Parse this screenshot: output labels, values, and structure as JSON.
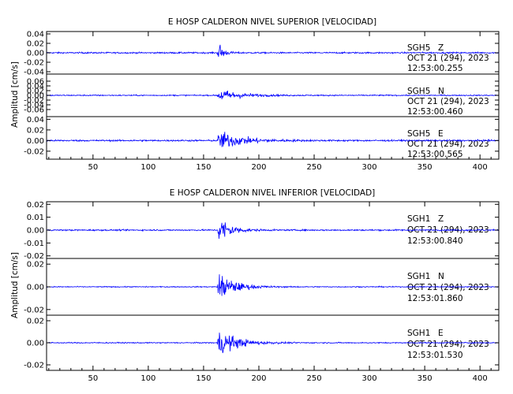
{
  "colors": {
    "trace": "#0000ff",
    "axes": "#000000",
    "background": "#ffffff"
  },
  "chart_data": [
    {
      "type": "line",
      "title": "E HOSP CALDERON NIVEL SUPERIOR [VELOCIDAD]",
      "ylabel": "Amplitud [cm/s]",
      "xlim": [
        8,
        417
      ],
      "x_ticks": [
        50,
        100,
        150,
        200,
        250,
        300,
        350,
        400
      ],
      "grid": false,
      "panels": [
        {
          "station": "SGH5",
          "component": "Z",
          "date": "OCT 21 (294), 2023",
          "time": "12:53:00.255",
          "ylim": [
            -0.045,
            0.045
          ],
          "y_ticks": [
            0.04,
            0.02,
            0.0,
            -0.02,
            -0.04
          ],
          "y_tick_labels": [
            "0.04",
            "0.02",
            "0.00",
            "-0.02",
            "-0.04"
          ],
          "noise_amplitude": 0.0025,
          "event_onset": 162,
          "event_peak": 0.035,
          "decay_s": 4
        },
        {
          "station": "SGH5",
          "component": "N",
          "date": "OCT 21 (294), 2023",
          "time": "12:53:00.460",
          "ylim": [
            -0.09,
            0.09
          ],
          "y_ticks": [
            0.06,
            0.04,
            0.02,
            0.0,
            -0.02,
            -0.04,
            -0.06
          ],
          "y_tick_labels": [
            "0.06",
            "0.04",
            "0.02",
            "0.00",
            "-0.02",
            "-0.04",
            "-0.06"
          ],
          "noise_amplitude": 0.004,
          "event_onset": 162,
          "event_peak": 0.045,
          "decay_s": 18
        },
        {
          "station": "SGH5",
          "component": "E",
          "date": "OCT 21 (294), 2023",
          "time": "12:53:00.565",
          "ylim": [
            -0.035,
            0.045
          ],
          "y_ticks": [
            0.04,
            0.02,
            0.0,
            -0.02
          ],
          "y_tick_labels": [
            "0.04",
            "0.02",
            "0.00",
            "-0.02"
          ],
          "noise_amplitude": 0.0025,
          "event_onset": 162,
          "event_peak": 0.03,
          "decay_s": 20
        }
      ]
    },
    {
      "type": "line",
      "title": "E HOSP CALDERON NIVEL INFERIOR [VELOCIDAD]",
      "ylabel": "Amplitud [cm/s]",
      "xlim": [
        8,
        417
      ],
      "x_ticks": [
        50,
        100,
        150,
        200,
        250,
        300,
        350,
        400
      ],
      "grid": false,
      "panels": [
        {
          "station": "SGH1",
          "component": "Z",
          "date": "OCT 21 (294), 2023",
          "time": "12:53:00.840",
          "ylim": [
            -0.022,
            0.022
          ],
          "y_ticks": [
            0.02,
            0.01,
            0.0,
            -0.01,
            -0.02
          ],
          "y_tick_labels": [
            "0.02",
            "0.01",
            "0.00",
            "-0.01",
            "-0.02"
          ],
          "noise_amplitude": 0.0009,
          "event_onset": 162,
          "event_peak": 0.018,
          "decay_s": 10
        },
        {
          "station": "SGH1",
          "component": "N",
          "date": "OCT 21 (294), 2023",
          "time": "12:53:01.860",
          "ylim": [
            -0.025,
            0.025
          ],
          "y_ticks": [
            0.02,
            0.0,
            -0.02
          ],
          "y_tick_labels": [
            "0.02",
            "0.00",
            "-0.02"
          ],
          "noise_amplitude": 0.0007,
          "event_onset": 162,
          "event_peak": 0.02,
          "decay_s": 14
        },
        {
          "station": "SGH1",
          "component": "E",
          "date": "OCT 21 (294), 2023",
          "time": "12:53:01.530",
          "ylim": [
            -0.025,
            0.025
          ],
          "y_ticks": [
            0.02,
            0.0,
            -0.02
          ],
          "y_tick_labels": [
            "0.02",
            "0.00",
            "-0.02"
          ],
          "noise_amplitude": 0.0008,
          "event_onset": 162,
          "event_peak": 0.02,
          "decay_s": 16
        }
      ]
    }
  ]
}
